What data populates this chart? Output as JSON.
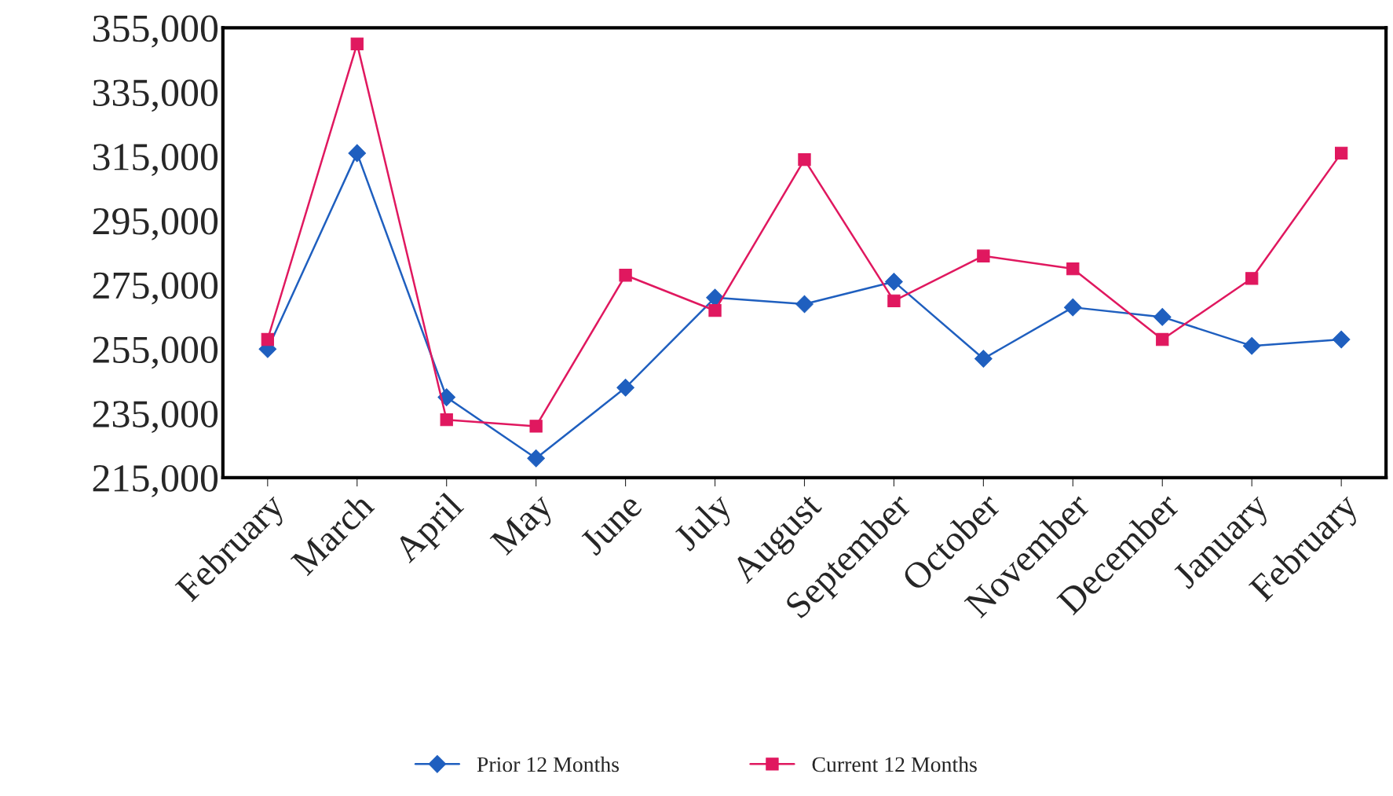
{
  "chart_data": {
    "type": "line",
    "categories": [
      "February",
      "March",
      "April",
      "May",
      "June",
      "July",
      "August",
      "September",
      "October",
      "November",
      "December",
      "January",
      "February"
    ],
    "series": [
      {
        "name": "Prior 12 Months",
        "color": "#1f5fbf",
        "marker": "diamond",
        "values": [
          255000,
          316000,
          240000,
          221000,
          243000,
          271000,
          269000,
          276000,
          252000,
          268000,
          265000,
          256000,
          258000
        ]
      },
      {
        "name": "Current 12 Months",
        "color": "#e0185f",
        "marker": "square",
        "values": [
          258000,
          350000,
          233000,
          231000,
          278000,
          267000,
          314000,
          270000,
          284000,
          280000,
          258000,
          277000,
          316000
        ]
      }
    ],
    "ylim": [
      215000,
      355000
    ],
    "yticks": [
      {
        "value": 215000,
        "label": "215,000"
      },
      {
        "value": 235000,
        "label": "235,000"
      },
      {
        "value": 255000,
        "label": "255,000"
      },
      {
        "value": 275000,
        "label": "275,000"
      },
      {
        "value": 295000,
        "label": "295,000"
      },
      {
        "value": 315000,
        "label": "315,000"
      },
      {
        "value": 335000,
        "label": "335,000"
      },
      {
        "value": 355000,
        "label": "355,000"
      }
    ],
    "grid": false,
    "legend": "bottom",
    "line_style": "solid"
  }
}
